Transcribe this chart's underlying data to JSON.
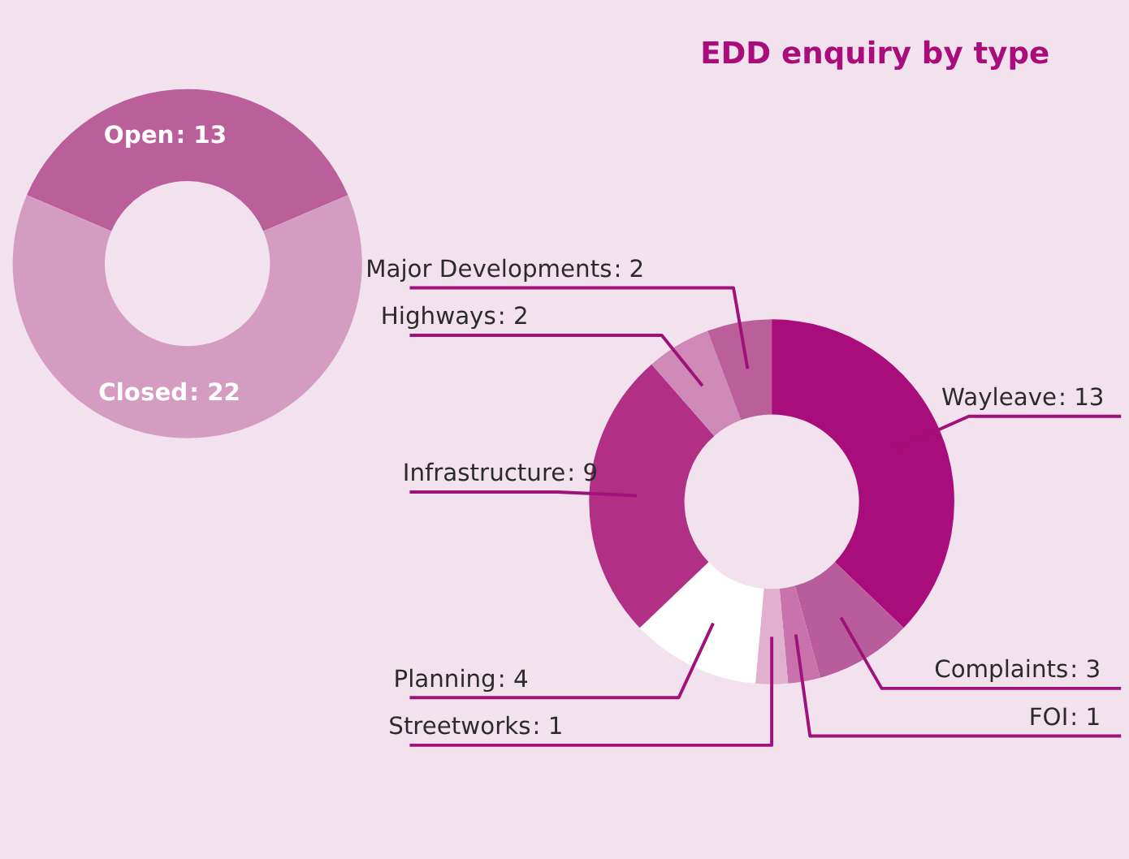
{
  "chart_data": [
    {
      "type": "donut",
      "categories": [
        "Open",
        "Closed"
      ],
      "values": [
        13,
        22
      ],
      "value_labels": [
        ": 13",
        ": 22"
      ],
      "colors": [
        "#bb5f9b",
        "#d49cc1"
      ]
    },
    {
      "type": "donut",
      "title": "EDD enquiry by type",
      "categories": [
        "Wayleave",
        "Complaints",
        "FOI",
        "Streetworks",
        "Planning",
        "Infrastructure",
        "Highways",
        "Major Developments"
      ],
      "values": [
        13,
        3,
        1,
        1,
        4,
        9,
        2,
        2
      ],
      "value_labels": [
        ": 13",
        ": 3",
        ": 1",
        ": 1",
        ": 4",
        ": 9",
        ": 2",
        ": 2"
      ],
      "colors": [
        "#a90d7b",
        "#b85c9b",
        "#c973ad",
        "#e0b0ce",
        "#ffffff",
        "#b13086",
        "#cf89b7",
        "#bb5f9b"
      ]
    }
  ]
}
